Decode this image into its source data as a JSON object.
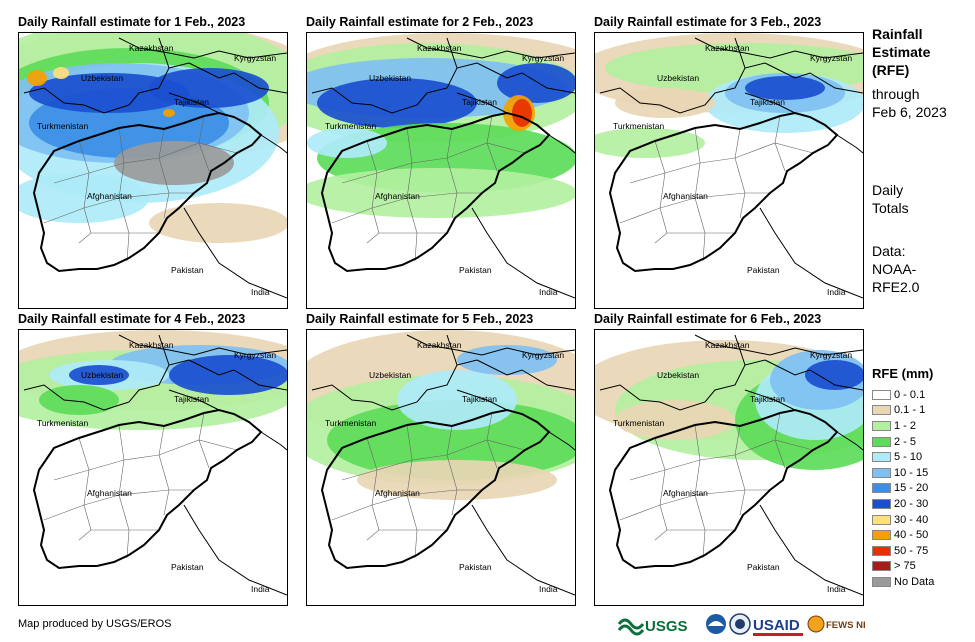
{
  "panels": [
    {
      "title": "Daily Rainfall estimate for 1 Feb., 2023",
      "labels": {
        "kazakhstan": "Kazakhstan",
        "kyrgyzstan": "Kyrgyzstan",
        "uzbekistan": "Uzbekistan",
        "tajikistan": "Tajikistan",
        "turkmenistan": "Turkmenistan",
        "afghanistan": "Afghanistan",
        "pakistan": "Pakistan",
        "india": "India"
      }
    },
    {
      "title": "Daily Rainfall estimate for 2 Feb., 2023",
      "labels": {
        "kazakhstan": "Kazakhstan",
        "kyrgyzstan": "Kyrgyzstan",
        "uzbekistan": "Uzbekistan",
        "tajikistan": "Tajikistan",
        "turkmenistan": "Turkmenistan",
        "afghanistan": "Afghanistan",
        "pakistan": "Pakistan",
        "india": "India"
      }
    },
    {
      "title": "Daily Rainfall estimate for 3 Feb., 2023",
      "labels": {
        "kazakhstan": "Kazakhstan",
        "kyrgyzstan": "Kyrgyzstan",
        "uzbekistan": "Uzbekistan",
        "tajikistan": "Tajikistan",
        "turkmenistan": "Turkmenistan",
        "afghanistan": "Afghanistan",
        "pakistan": "Pakistan",
        "india": "India"
      }
    },
    {
      "title": "Daily Rainfall estimate for 4 Feb., 2023",
      "labels": {
        "kazakhstan": "Kazakhstan",
        "kyrgyzstan": "Kyrgyzstan",
        "uzbekistan": "Uzbekistan",
        "tajikistan": "Tajikistan",
        "turkmenistan": "Turkmenistan",
        "afghanistan": "Afghanistan",
        "pakistan": "Pakistan",
        "india": "India"
      }
    },
    {
      "title": "Daily Rainfall estimate for 5 Feb., 2023",
      "labels": {
        "kazakhstan": "Kazakhstan",
        "kyrgyzstan": "Kyrgyzstan",
        "uzbekistan": "Uzbekistan",
        "tajikistan": "Tajikistan",
        "turkmenistan": "Turkmenistan",
        "afghanistan": "Afghanistan",
        "pakistan": "Pakistan",
        "india": "India"
      }
    },
    {
      "title": "Daily Rainfall estimate for 6 Feb., 2023",
      "labels": {
        "kazakhstan": "Kazakhstan",
        "kyrgyzstan": "Kyrgyzstan",
        "uzbekistan": "Uzbekistan",
        "tajikistan": "Tajikistan",
        "turkmenistan": "Turkmenistan",
        "afghanistan": "Afghanistan",
        "pakistan": "Pakistan",
        "india": "India"
      }
    }
  ],
  "side_text": {
    "title_lines": [
      "Rainfall",
      "Estimate",
      "(RFE)"
    ],
    "through_lines": [
      "through",
      "Feb 6, 2023"
    ],
    "totals_lines": [
      "Daily",
      "Totals"
    ],
    "data_lines": [
      "Data:",
      "NOAA-",
      "RFE2.0"
    ]
  },
  "legend": {
    "title": "RFE (mm)",
    "items": [
      {
        "label": "0 - 0.1",
        "color": "#ffffff"
      },
      {
        "label": "0.1 - 1",
        "color": "#e8d6b4"
      },
      {
        "label": "1 - 2",
        "color": "#b2f0a0"
      },
      {
        "label": "2 - 5",
        "color": "#5ddc5a"
      },
      {
        "label": "5 - 10",
        "color": "#aeeaf8"
      },
      {
        "label": "10 - 15",
        "color": "#7fc0f2"
      },
      {
        "label": "15 - 20",
        "color": "#3c8ee6"
      },
      {
        "label": "20 - 30",
        "color": "#1a4fd0"
      },
      {
        "label": "30 - 40",
        "color": "#ffe07a"
      },
      {
        "label": "40 - 50",
        "color": "#f5a000"
      },
      {
        "label": "50 - 75",
        "color": "#e83000"
      },
      {
        "label": "> 75",
        "color": "#a81c1c"
      },
      {
        "label": "No Data",
        "color": "#9a9a9a"
      }
    ]
  },
  "credit": "Map produced by USGS/EROS",
  "logos": [
    "USGS",
    "USAID",
    "FEWS NET"
  ]
}
